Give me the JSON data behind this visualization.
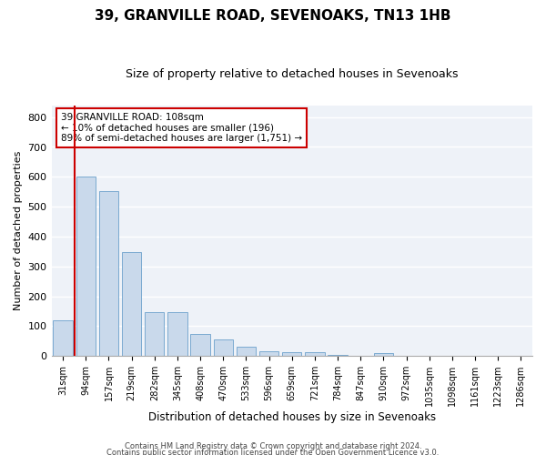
{
  "title": "39, GRANVILLE ROAD, SEVENOAKS, TN13 1HB",
  "subtitle": "Size of property relative to detached houses in Sevenoaks",
  "xlabel": "Distribution of detached houses by size in Sevenoaks",
  "ylabel": "Number of detached properties",
  "bar_color": "#c9d9eb",
  "bar_edge_color": "#7aaad0",
  "categories": [
    "31sqm",
    "94sqm",
    "157sqm",
    "219sqm",
    "282sqm",
    "345sqm",
    "408sqm",
    "470sqm",
    "533sqm",
    "596sqm",
    "659sqm",
    "721sqm",
    "784sqm",
    "847sqm",
    "910sqm",
    "972sqm",
    "1035sqm",
    "1098sqm",
    "1161sqm",
    "1223sqm",
    "1286sqm"
  ],
  "values": [
    120,
    600,
    553,
    348,
    148,
    148,
    75,
    57,
    32,
    16,
    13,
    13,
    5,
    0,
    10,
    0,
    0,
    0,
    0,
    0,
    0
  ],
  "vline_x": 1.0,
  "vline_color": "#cc0000",
  "annotation_text": "39 GRANVILLE ROAD: 108sqm\n← 10% of detached houses are smaller (196)\n89% of semi-detached houses are larger (1,751) →",
  "ylim": [
    0,
    840
  ],
  "yticks": [
    0,
    100,
    200,
    300,
    400,
    500,
    600,
    700,
    800
  ],
  "background_color": "#eef2f8",
  "grid_color": "#ffffff",
  "footer1": "Contains HM Land Registry data © Crown copyright and database right 2024.",
  "footer2": "Contains public sector information licensed under the Open Government Licence v3.0."
}
